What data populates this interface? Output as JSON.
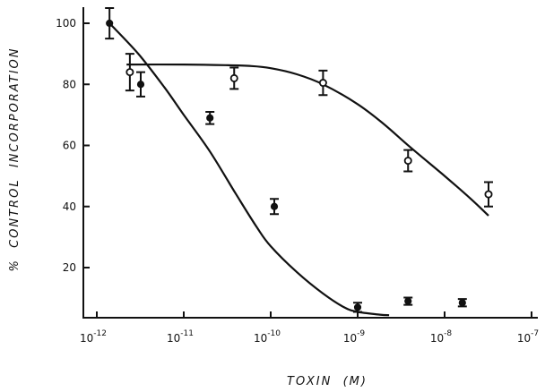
{
  "chart_data": {
    "type": "scatter",
    "xscale": "log",
    "xlabel": "TOXIN  (M)",
    "ylabel": "%  CONTROL  INCORPORATION",
    "xlim": [
      1e-12,
      1e-07
    ],
    "ylim": [
      4,
      105
    ],
    "grid": false,
    "x_ticks": [
      {
        "value": 1e-12,
        "base": "10",
        "exp": "-12"
      },
      {
        "value": 1e-11,
        "base": "10",
        "exp": "-11"
      },
      {
        "value": 1e-10,
        "base": "10",
        "exp": "-10"
      },
      {
        "value": 1e-09,
        "base": "10",
        "exp": "-9"
      },
      {
        "value": 1e-08,
        "base": "10",
        "exp": "-8"
      },
      {
        "value": 1e-07,
        "base": "10",
        "exp": "-7"
      }
    ],
    "y_ticks": [
      {
        "value": 20,
        "label": "20"
      },
      {
        "value": 40,
        "label": "40"
      },
      {
        "value": 60,
        "label": "60"
      },
      {
        "value": 80,
        "label": "80"
      },
      {
        "value": 100,
        "label": "100"
      }
    ],
    "series": [
      {
        "marker": "filled-circle",
        "points": [
          {
            "x": 1.4e-12,
            "y": 100,
            "err": 5
          },
          {
            "x": 3.2e-12,
            "y": 80,
            "err": 4
          },
          {
            "x": 2e-11,
            "y": 69,
            "err": 2
          },
          {
            "x": 1.1e-10,
            "y": 40,
            "err": 2.5
          },
          {
            "x": 1e-09,
            "y": 7,
            "err": 1.5
          },
          {
            "x": 3.8e-09,
            "y": 9,
            "err": 1.2
          },
          {
            "x": 1.6e-08,
            "y": 8.5,
            "err": 1.2
          }
        ],
        "fit_curve": [
          [
            1.4e-12,
            100
          ],
          [
            3e-12,
            90
          ],
          [
            6e-12,
            79
          ],
          [
            1e-11,
            70
          ],
          [
            2e-11,
            58
          ],
          [
            4e-11,
            44
          ],
          [
            7e-11,
            33
          ],
          [
            1e-10,
            27
          ],
          [
            2e-10,
            18.5
          ],
          [
            4e-10,
            11.5
          ],
          [
            7e-10,
            7
          ],
          [
            1e-09,
            5.5
          ],
          [
            1.8e-09,
            4.6
          ],
          [
            2.3e-09,
            4.4
          ]
        ]
      },
      {
        "marker": "open-circle",
        "points": [
          {
            "x": 2.4e-12,
            "y": 84,
            "err": 6
          },
          {
            "x": 3.8e-11,
            "y": 82,
            "err": 3.5
          },
          {
            "x": 4e-10,
            "y": 80.5,
            "err": 4
          },
          {
            "x": 3.8e-09,
            "y": 55,
            "err": 3.5
          },
          {
            "x": 3.2e-08,
            "y": 44,
            "err": 4
          }
        ],
        "fit_curve": [
          [
            2.2e-12,
            86.5
          ],
          [
            1e-11,
            86.5
          ],
          [
            3e-11,
            86.3
          ],
          [
            6e-11,
            86
          ],
          [
            1e-10,
            85.3
          ],
          [
            2e-10,
            83.3
          ],
          [
            4e-10,
            80
          ],
          [
            1e-09,
            73.5
          ],
          [
            2e-09,
            67
          ],
          [
            4e-09,
            59.5
          ],
          [
            1e-08,
            50
          ],
          [
            2e-08,
            42.5
          ],
          [
            3.2e-08,
            37
          ]
        ]
      }
    ]
  }
}
